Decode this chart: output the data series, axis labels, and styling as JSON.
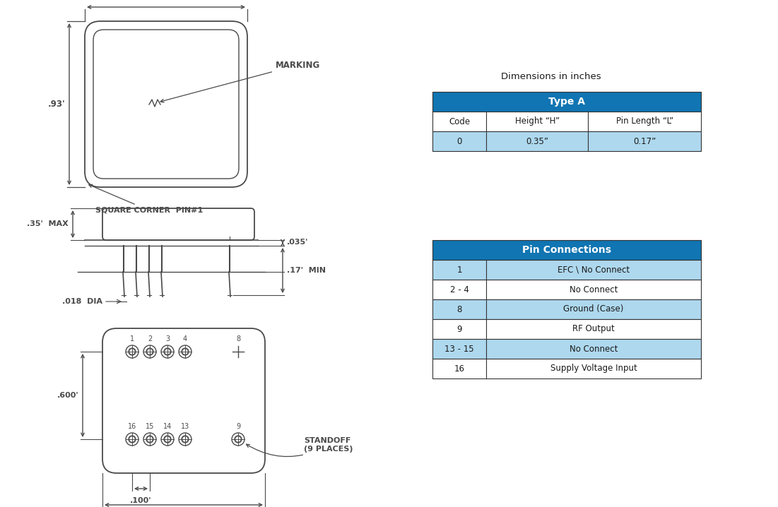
{
  "bg_color": "#ffffff",
  "line_color": "#4a4a4a",
  "header_color": "#1075b2",
  "header_text_color": "#ffffff",
  "row_even_color": "#aed8ee",
  "row_odd_color": "#ffffff",
  "table1_title": "Type A",
  "table1_headers": [
    "Code",
    "Height “H”",
    "Pin Length “L”"
  ],
  "table1_rows": [
    [
      "0",
      "0.35”",
      "0.17”"
    ]
  ],
  "dim_label": "Dimensions in inches",
  "table2_title": "Pin Connections",
  "table2_rows": [
    [
      "1",
      "EFC \\ No Connect"
    ],
    [
      "2 - 4",
      "No Connect"
    ],
    [
      "8",
      "Ground (Case)"
    ],
    [
      "9",
      "RF Output"
    ],
    [
      "13 - 15",
      "No Connect"
    ],
    [
      "16",
      "Supply Voltage Input"
    ]
  ],
  "text_color": "#1a1a1a"
}
